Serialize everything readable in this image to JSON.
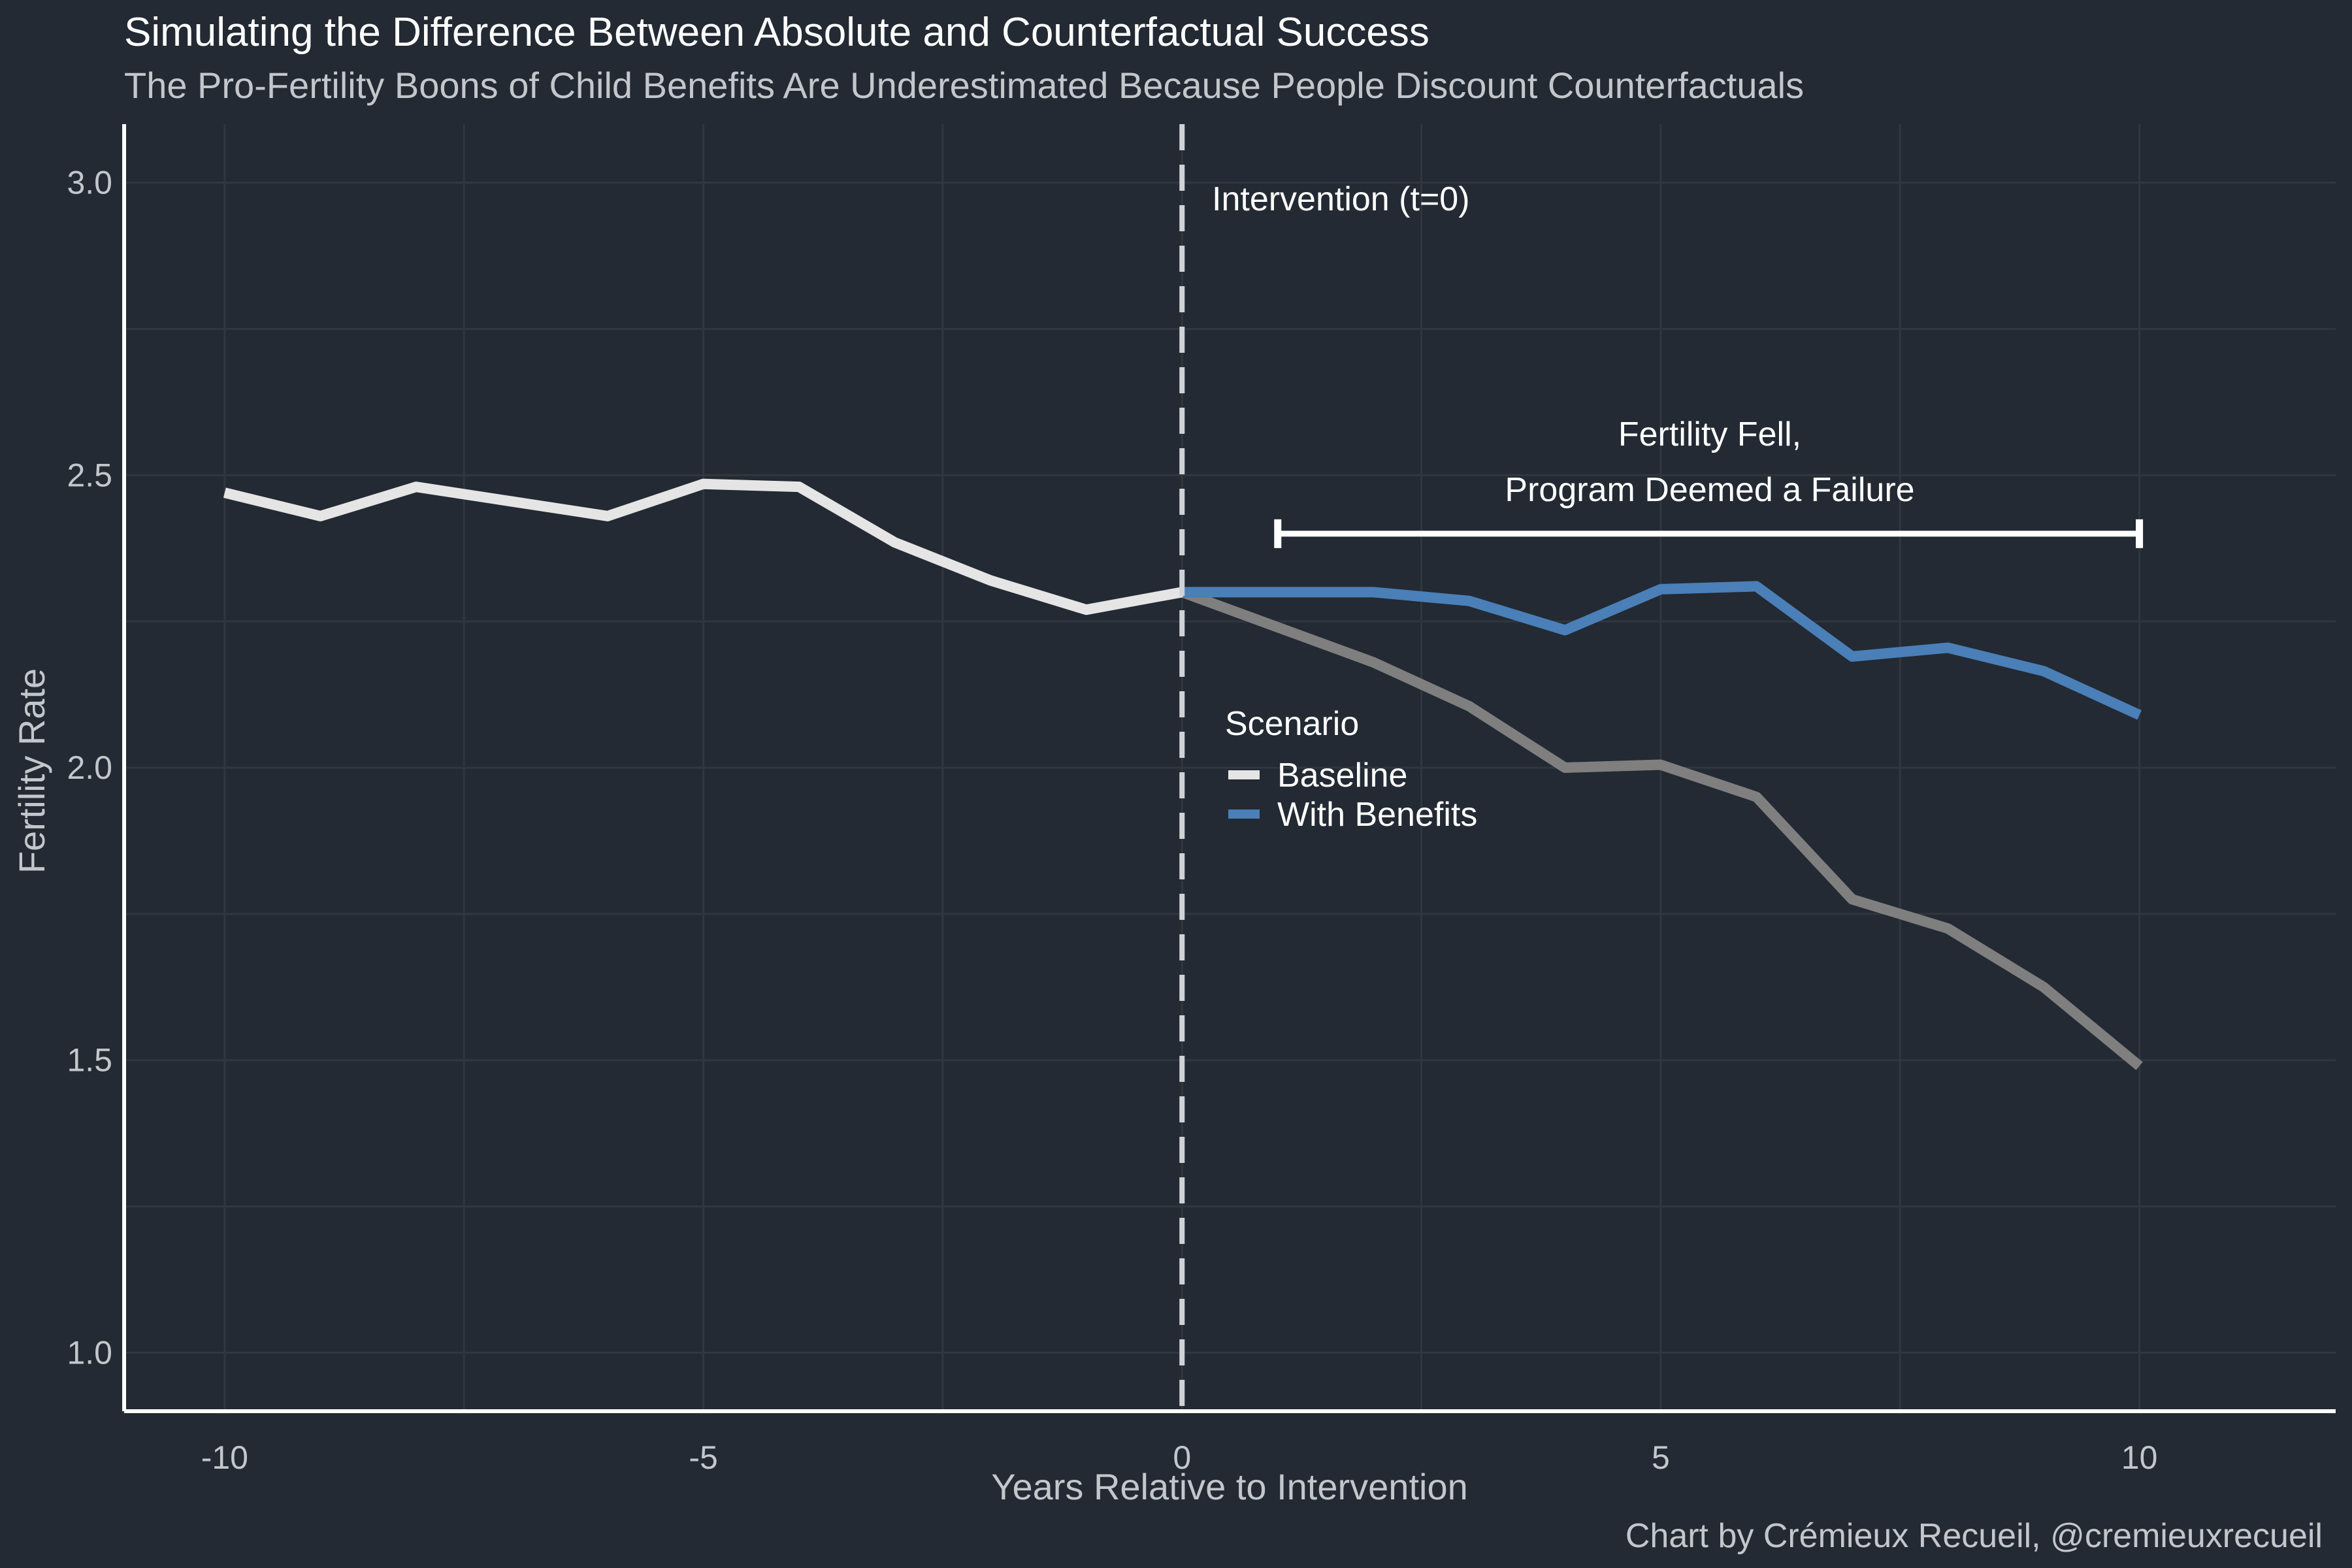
{
  "chart_data": {
    "type": "line",
    "title": "Simulating the Difference Between Absolute and Counterfactual Success",
    "subtitle": "The Pro-Fertility Boons of Child Benefits Are Underestimated Because People Discount Counterfactuals",
    "xlabel": "Years Relative to Intervention",
    "ylabel": "Fertility Rate",
    "xlim": [
      -11.05,
      12.05
    ],
    "ylim": [
      0.9,
      3.1
    ],
    "x_ticks": [
      -10,
      -5,
      0,
      5,
      10
    ],
    "x_tick_labels": [
      "-10",
      "-5",
      "0",
      "5",
      "10"
    ],
    "y_ticks": [
      1.0,
      1.5,
      2.0,
      2.5,
      3.0
    ],
    "y_tick_labels": [
      "1.0",
      "1.5",
      "2.0",
      "2.5",
      "3.0"
    ],
    "grid": true,
    "series": [
      {
        "name": "Baseline",
        "color": "#e5e5e5",
        "x": [
          -10,
          -9,
          -8,
          -7,
          -6,
          -5,
          -4,
          -3,
          -2,
          -1,
          0
        ],
        "values": [
          2.47,
          2.43,
          2.48,
          2.455,
          2.43,
          2.485,
          2.48,
          2.385,
          2.32,
          2.27,
          2.3
        ]
      },
      {
        "name": "",
        "color": "#7f7f7f",
        "x": [
          0,
          1,
          2,
          3,
          4,
          5,
          6,
          7,
          8,
          9,
          10
        ],
        "values": [
          2.3,
          2.24,
          2.18,
          2.105,
          2.0,
          2.005,
          1.95,
          1.775,
          1.725,
          1.625,
          1.49
        ]
      },
      {
        "name": "With Benefits",
        "color": "#4a7fb8",
        "x": [
          0,
          1,
          2,
          3,
          4,
          5,
          6,
          7,
          8,
          9,
          10
        ],
        "values": [
          2.3,
          2.3,
          2.3,
          2.285,
          2.235,
          2.305,
          2.31,
          2.19,
          2.205,
          2.165,
          2.09
        ]
      }
    ],
    "intervention_line": {
      "x": 0,
      "label": "Intervention (t=0)"
    },
    "bracket": {
      "x_start": 1,
      "x_end": 10,
      "y": 2.4,
      "label_line1": "Fertility Fell,",
      "label_line2": "Program Deemed a Failure"
    },
    "legend": {
      "title": "Scenario",
      "entries": [
        "Baseline",
        "With Benefits"
      ],
      "colors": [
        "#e5e5e5",
        "#4a7fb8"
      ],
      "placement": "center"
    },
    "caption": "Chart by Crémieux Recueil, @cremieuxrecueil"
  }
}
